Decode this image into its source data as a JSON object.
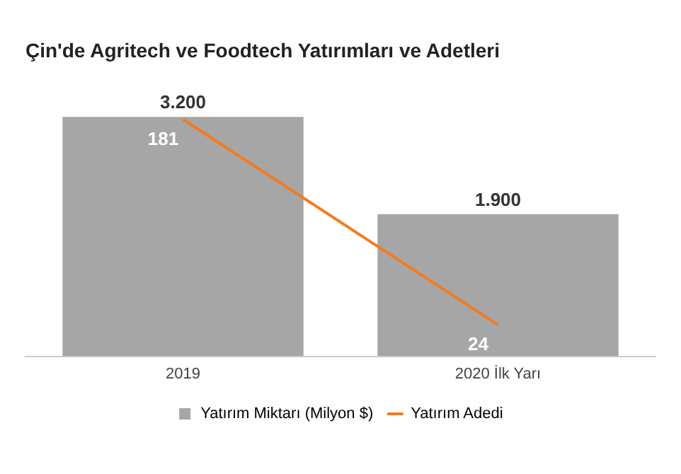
{
  "chart_data": {
    "type": "bar",
    "title": "Çin'de Agritech ve Foodtech Yatırımları ve Adetleri",
    "categories": [
      "2019",
      "2020 İlk Yarı"
    ],
    "series": [
      {
        "name": "Yatırım Miktarı (Milyon $)",
        "color": "#a6a6a6",
        "values": [
          3200,
          1900
        ],
        "value_labels": [
          "3.200",
          "1.900"
        ]
      },
      {
        "name": "Yatırım Adedi",
        "type": "line",
        "axis": "y2",
        "color": "#f47b20",
        "values": [
          181,
          24
        ],
        "value_labels": [
          "181",
          "24"
        ],
        "marker": "none"
      }
    ],
    "tick_labels": "x",
    "grid": false,
    "legend": "bottom"
  }
}
